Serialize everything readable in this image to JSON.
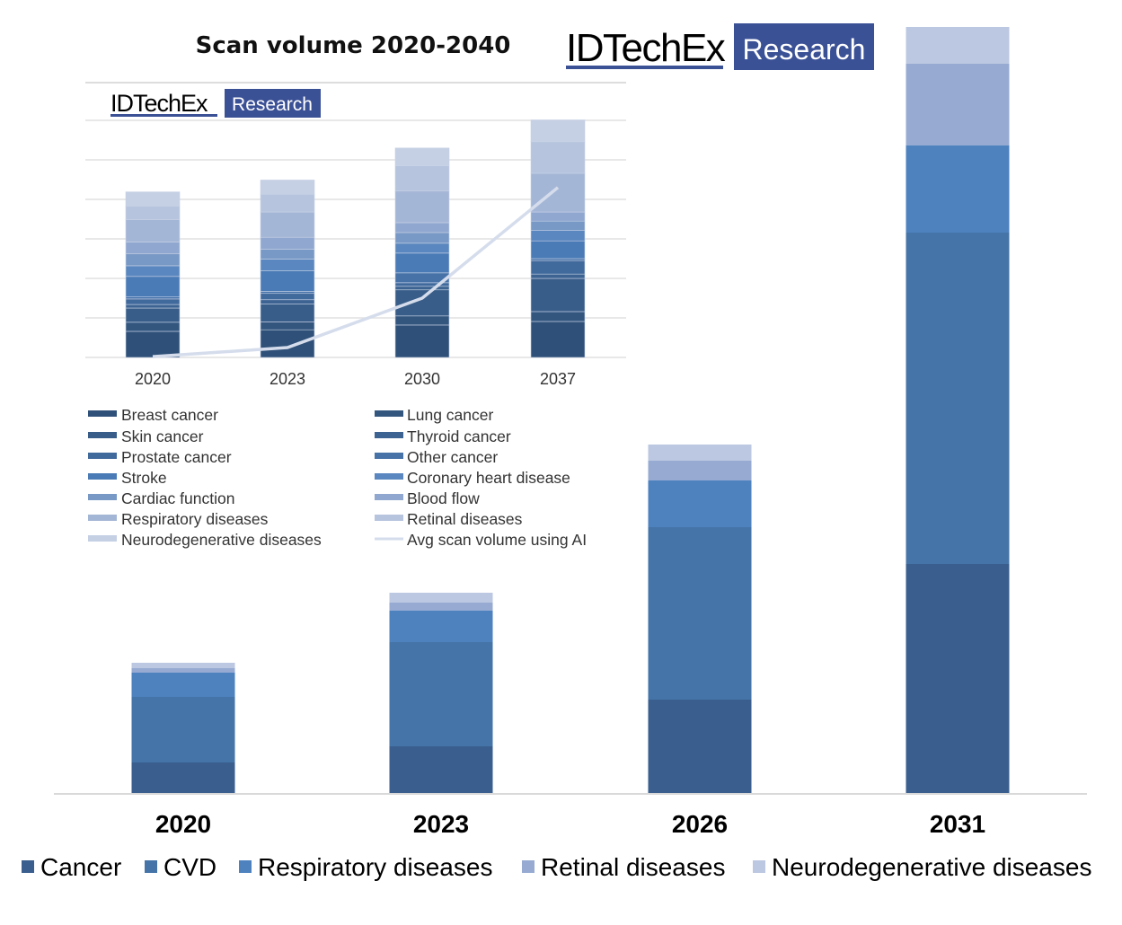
{
  "title": "Scan volume 2020-2040",
  "logo": {
    "brand": "IDTechEx",
    "tag": "Research",
    "brand_color": "#3b5196"
  },
  "chart_data": [
    {
      "type": "bar",
      "stacked": true,
      "title": "Scan volume 2020-2040",
      "xlabel": "",
      "ylabel": "",
      "y_axis_shown": false,
      "units": "relative (no axis shown)",
      "categories": [
        "2020",
        "2023",
        "2026",
        "2031"
      ],
      "series": [
        {
          "name": "Cancer",
          "color": "#3a5f8e",
          "values": [
            3.4,
            5.2,
            10.4,
            25.5
          ]
        },
        {
          "name": "CVD",
          "color": "#4574a8",
          "values": [
            7.3,
            11.6,
            19.2,
            36.9
          ]
        },
        {
          "name": "Respiratory diseases",
          "color": "#4e82bf",
          "values": [
            2.7,
            3.5,
            5.2,
            9.7
          ]
        },
        {
          "name": "Retinal diseases",
          "color": "#97abd2",
          "values": [
            0.5,
            0.9,
            2.2,
            9.1
          ]
        },
        {
          "name": "Neurodegenerative diseases",
          "color": "#bcc8e1",
          "values": [
            0.6,
            1.1,
            1.8,
            4.1
          ]
        }
      ],
      "legend": "bottom"
    },
    {
      "type": "bar",
      "stacked": true,
      "inset": true,
      "categories": [
        "2020",
        "2023",
        "2030",
        "2037"
      ],
      "ylim": [
        0,
        6
      ],
      "grid": true,
      "series": [
        {
          "name": "Breast cancer",
          "color": "#2f5078",
          "values": [
            0.66,
            0.7,
            0.82,
            0.91
          ]
        },
        {
          "name": "Lung cancer",
          "color": "#33567f",
          "values": [
            0.23,
            0.2,
            0.23,
            0.25
          ]
        },
        {
          "name": "Skin cancer",
          "color": "#385d88",
          "values": [
            0.36,
            0.45,
            0.66,
            0.84
          ]
        },
        {
          "name": "Thyroid cancer",
          "color": "#3c6391",
          "values": [
            0.09,
            0.11,
            0.09,
            0.11
          ]
        },
        {
          "name": "Prostate cancer",
          "color": "#416a9c",
          "values": [
            0.14,
            0.16,
            0.09,
            0.34
          ]
        },
        {
          "name": "Other cancer",
          "color": "#4672a8",
          "values": [
            0.05,
            0.05,
            0.25,
            0.05
          ]
        },
        {
          "name": "Stroke",
          "color": "#4a7bb6",
          "values": [
            0.52,
            0.52,
            0.5,
            0.45
          ]
        },
        {
          "name": "Coronary heart disease",
          "color": "#5a87bf",
          "values": [
            0.27,
            0.3,
            0.25,
            0.27
          ]
        },
        {
          "name": "Cardiac function",
          "color": "#7898c5",
          "values": [
            0.3,
            0.25,
            0.27,
            0.23
          ]
        },
        {
          "name": "Blood flow",
          "color": "#90a7cf",
          "values": [
            0.3,
            0.3,
            0.25,
            0.23
          ]
        },
        {
          "name": "Respiratory diseases",
          "color": "#a4b6d6",
          "values": [
            0.57,
            0.64,
            0.8,
            0.98
          ]
        },
        {
          "name": "Retinal diseases",
          "color": "#b6c4de",
          "values": [
            0.34,
            0.45,
            0.64,
            0.8
          ]
        },
        {
          "name": "Neurodegenerative diseases",
          "color": "#c5d0e4",
          "values": [
            0.36,
            0.36,
            0.45,
            0.55
          ]
        }
      ],
      "line": {
        "name": "Avg scan volume using AI",
        "color": "#d5ddec",
        "values": [
          0.02,
          0.25,
          1.5,
          4.3
        ]
      },
      "legend_order": [
        "Breast cancer",
        "Lung cancer",
        "Skin cancer",
        "Thyroid cancer",
        "Prostate cancer",
        "Other cancer",
        "Stroke",
        "Coronary heart disease",
        "Cardiac function",
        "Blood flow",
        "Respiratory diseases",
        "Retinal diseases",
        "Neurodegenerative diseases",
        "Avg scan volume using AI"
      ],
      "legend": "below"
    }
  ]
}
